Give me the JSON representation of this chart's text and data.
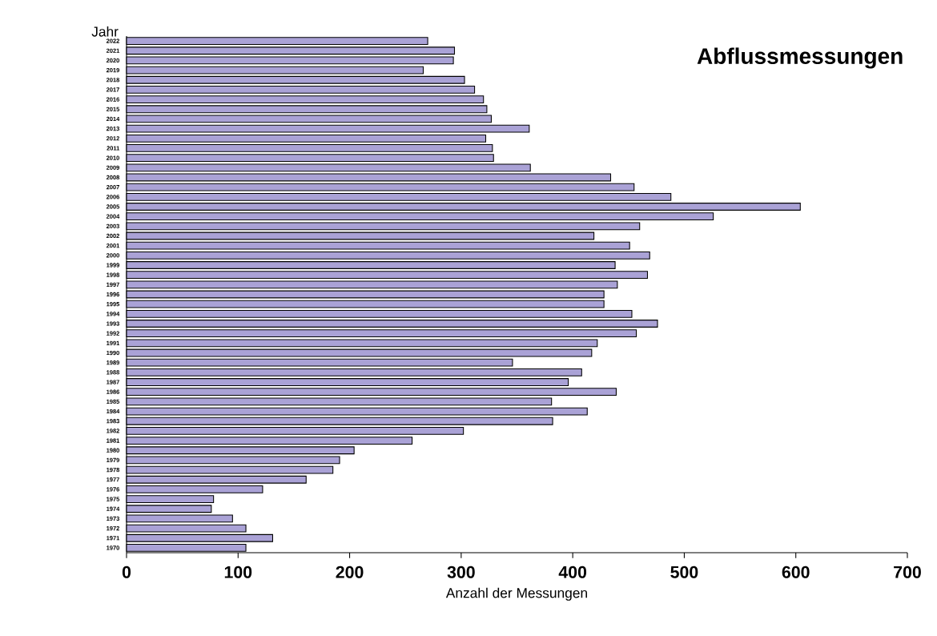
{
  "chart_data": {
    "type": "bar",
    "orientation": "horizontal",
    "title": "Abflussmessungen",
    "xlabel": "Anzahl der Messungen",
    "ylabel": "Jahr",
    "categories": [
      "2022",
      "2021",
      "2020",
      "2019",
      "2018",
      "2017",
      "2016",
      "2015",
      "2014",
      "2013",
      "2012",
      "2011",
      "2010",
      "2009",
      "2008",
      "2007",
      "2006",
      "2005",
      "2004",
      "2003",
      "2002",
      "2001",
      "2000",
      "1999",
      "1998",
      "1997",
      "1996",
      "1995",
      "1994",
      "1993",
      "1992",
      "1991",
      "1990",
      "1989",
      "1988",
      "1987",
      "1986",
      "1985",
      "1984",
      "1983",
      "1982",
      "1981",
      "1980",
      "1979",
      "1978",
      "1977",
      "1976",
      "1975",
      "1974",
      "1973",
      "1972",
      "1971",
      "1970"
    ],
    "values": [
      270,
      294,
      293,
      266,
      303,
      312,
      320,
      323,
      327,
      361,
      322,
      328,
      329,
      362,
      434,
      455,
      488,
      604,
      526,
      460,
      419,
      451,
      469,
      438,
      467,
      440,
      428,
      428,
      453,
      476,
      457,
      422,
      417,
      346,
      408,
      396,
      439,
      381,
      413,
      382,
      302,
      256,
      204,
      191,
      185,
      161,
      122,
      78,
      76,
      95,
      107,
      131,
      107
    ],
    "color": "#aaa2d6",
    "xlim": [
      0,
      700
    ],
    "xticks": [
      0,
      100,
      200,
      300,
      400,
      500,
      600,
      700
    ],
    "grid": false
  }
}
